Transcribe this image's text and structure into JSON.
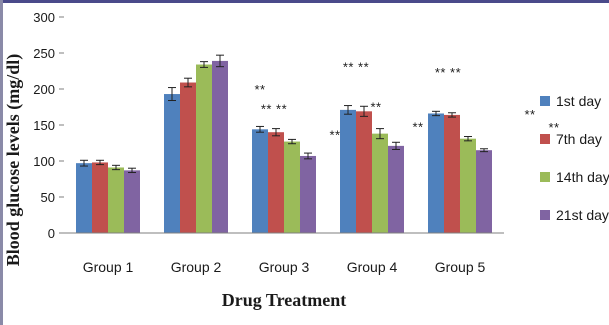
{
  "chart_data": {
    "type": "bar",
    "xlabel": "Drug Treatment",
    "ylabel": "Blood glucose levels (mg/dl)",
    "ylim": [
      0,
      300
    ],
    "yticks": [
      0,
      50,
      100,
      150,
      200,
      250,
      300
    ],
    "categories": [
      "Group 1",
      "Group 2",
      "Group 3",
      "Group 4",
      "Group 5"
    ],
    "series": [
      {
        "name": "1st day",
        "color": "#4f81bd",
        "values": [
          97,
          193,
          144,
          171,
          166
        ],
        "errors": [
          4,
          9,
          4,
          6,
          3
        ]
      },
      {
        "name": "7th day",
        "color": "#c0504d",
        "values": [
          98,
          209,
          140,
          169,
          164
        ],
        "errors": [
          3,
          6,
          5,
          7,
          3
        ]
      },
      {
        "name": "14th day",
        "color": "#9bbb59",
        "values": [
          91,
          234,
          127,
          138,
          131
        ],
        "errors": [
          3,
          4,
          3,
          7,
          3
        ]
      },
      {
        "name": "21st day",
        "color": "#8064a2",
        "values": [
          87,
          239,
          107,
          121,
          115
        ],
        "errors": [
          3,
          8,
          4,
          5,
          2
        ]
      }
    ],
    "legend_position": "right",
    "grid": false,
    "annotations": [
      {
        "text": "**",
        "x": "Group 3",
        "y": 193
      },
      {
        "text": "** **",
        "x": "Group 3",
        "y": 166
      },
      {
        "text": "**",
        "x": "Group 3",
        "y": 130
      },
      {
        "text": "** **",
        "x": "Group 4",
        "y": 224
      },
      {
        "text": "**",
        "x": "Group 4",
        "y": 169
      },
      {
        "text": "**",
        "x": "Group 4",
        "y": 141
      },
      {
        "text": "** **",
        "x": "Group 5",
        "y": 217
      },
      {
        "text": "**",
        "x": "Group 5",
        "y": 158
      },
      {
        "text": "**",
        "x": "Group 5",
        "y": 140
      }
    ]
  }
}
